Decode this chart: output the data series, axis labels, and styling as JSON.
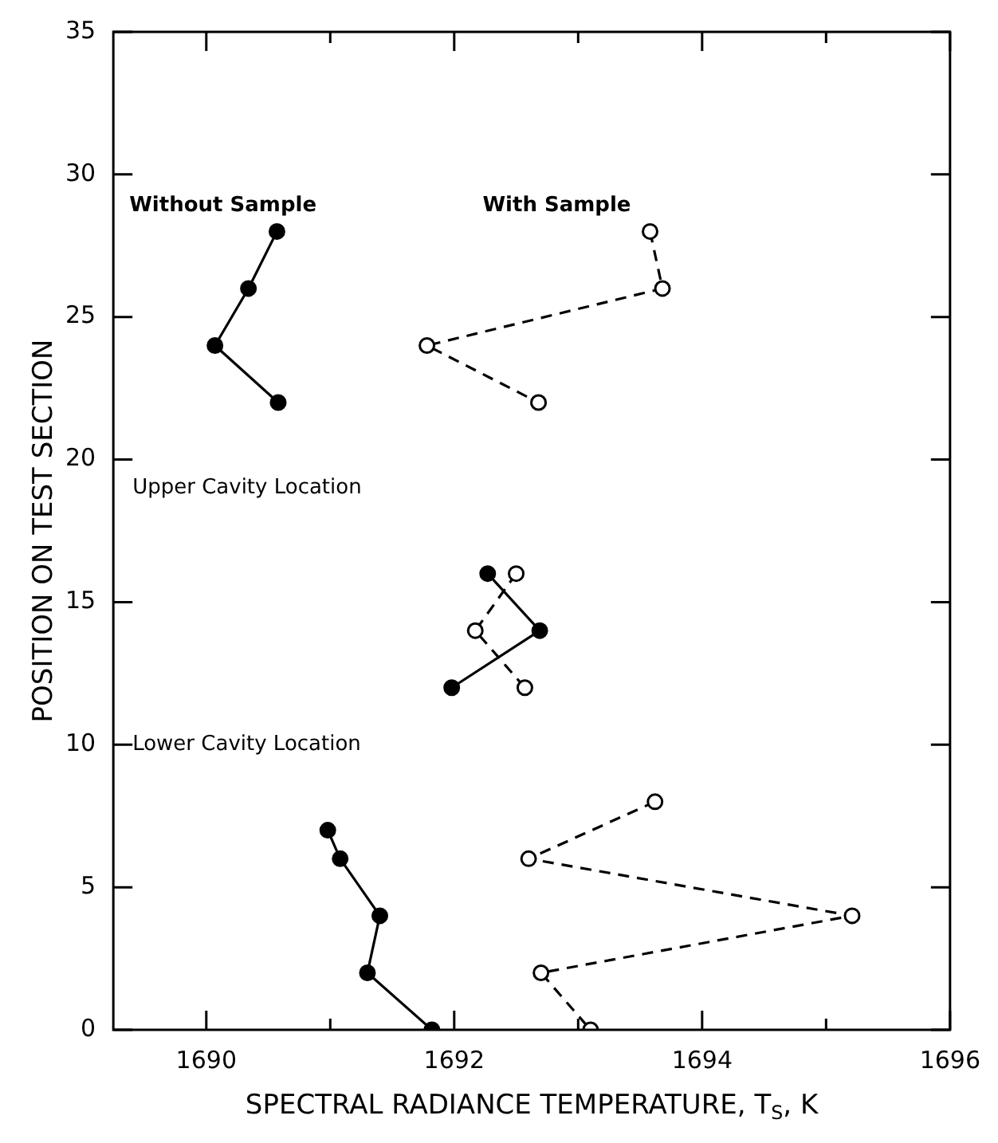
{
  "chart_data": {
    "type": "line",
    "xlabel": "SPECTRAL RADIANCE TEMPERATURE, T$_{S}$, K",
    "ylabel": "POSITION ON TEST SECTION",
    "xlim": [
      1689.25,
      1696
    ],
    "xticks": [
      1690,
      {
        "value": 1691,
        "label": null
      },
      1692,
      {
        "value": 1693,
        "label": null
      },
      1694,
      {
        "value": 1695,
        "label": null
      },
      1696
    ],
    "ylim": [
      0,
      35
    ],
    "yticks": [
      0,
      5,
      10,
      15,
      20,
      25,
      30,
      35
    ],
    "grid": false,
    "legend": false,
    "annotations": [
      "Upper Cavity Location",
      "Lower Cavity Location"
    ],
    "series": [
      {
        "name": "Without Sample",
        "color": "#000000",
        "marker": "circle",
        "line_style": "solid",
        "x": [
          1690.57,
          1690.34,
          1690.07,
          1690.58,
          null,
          1692.27,
          1692.69,
          1691.98,
          null,
          1690.98,
          1691.08,
          1691.4,
          1691.3,
          1691.82
        ],
        "values": [
          28,
          26,
          24,
          22,
          null,
          16,
          14,
          12,
          null,
          7,
          6,
          4,
          2,
          0
        ]
      },
      {
        "name": "With Sample",
        "color": "#000000",
        "marker": "circle",
        "line_style": "dashed",
        "x": [
          1693.58,
          1693.68,
          1691.78,
          1692.68,
          null,
          1692.5,
          1692.17,
          1692.57,
          null,
          1693.62,
          1692.6,
          1695.21,
          1692.7,
          1693.1
        ],
        "values": [
          28,
          26,
          24,
          22,
          null,
          16,
          14,
          12,
          null,
          8,
          6,
          4,
          2,
          0
        ]
      }
    ]
  }
}
